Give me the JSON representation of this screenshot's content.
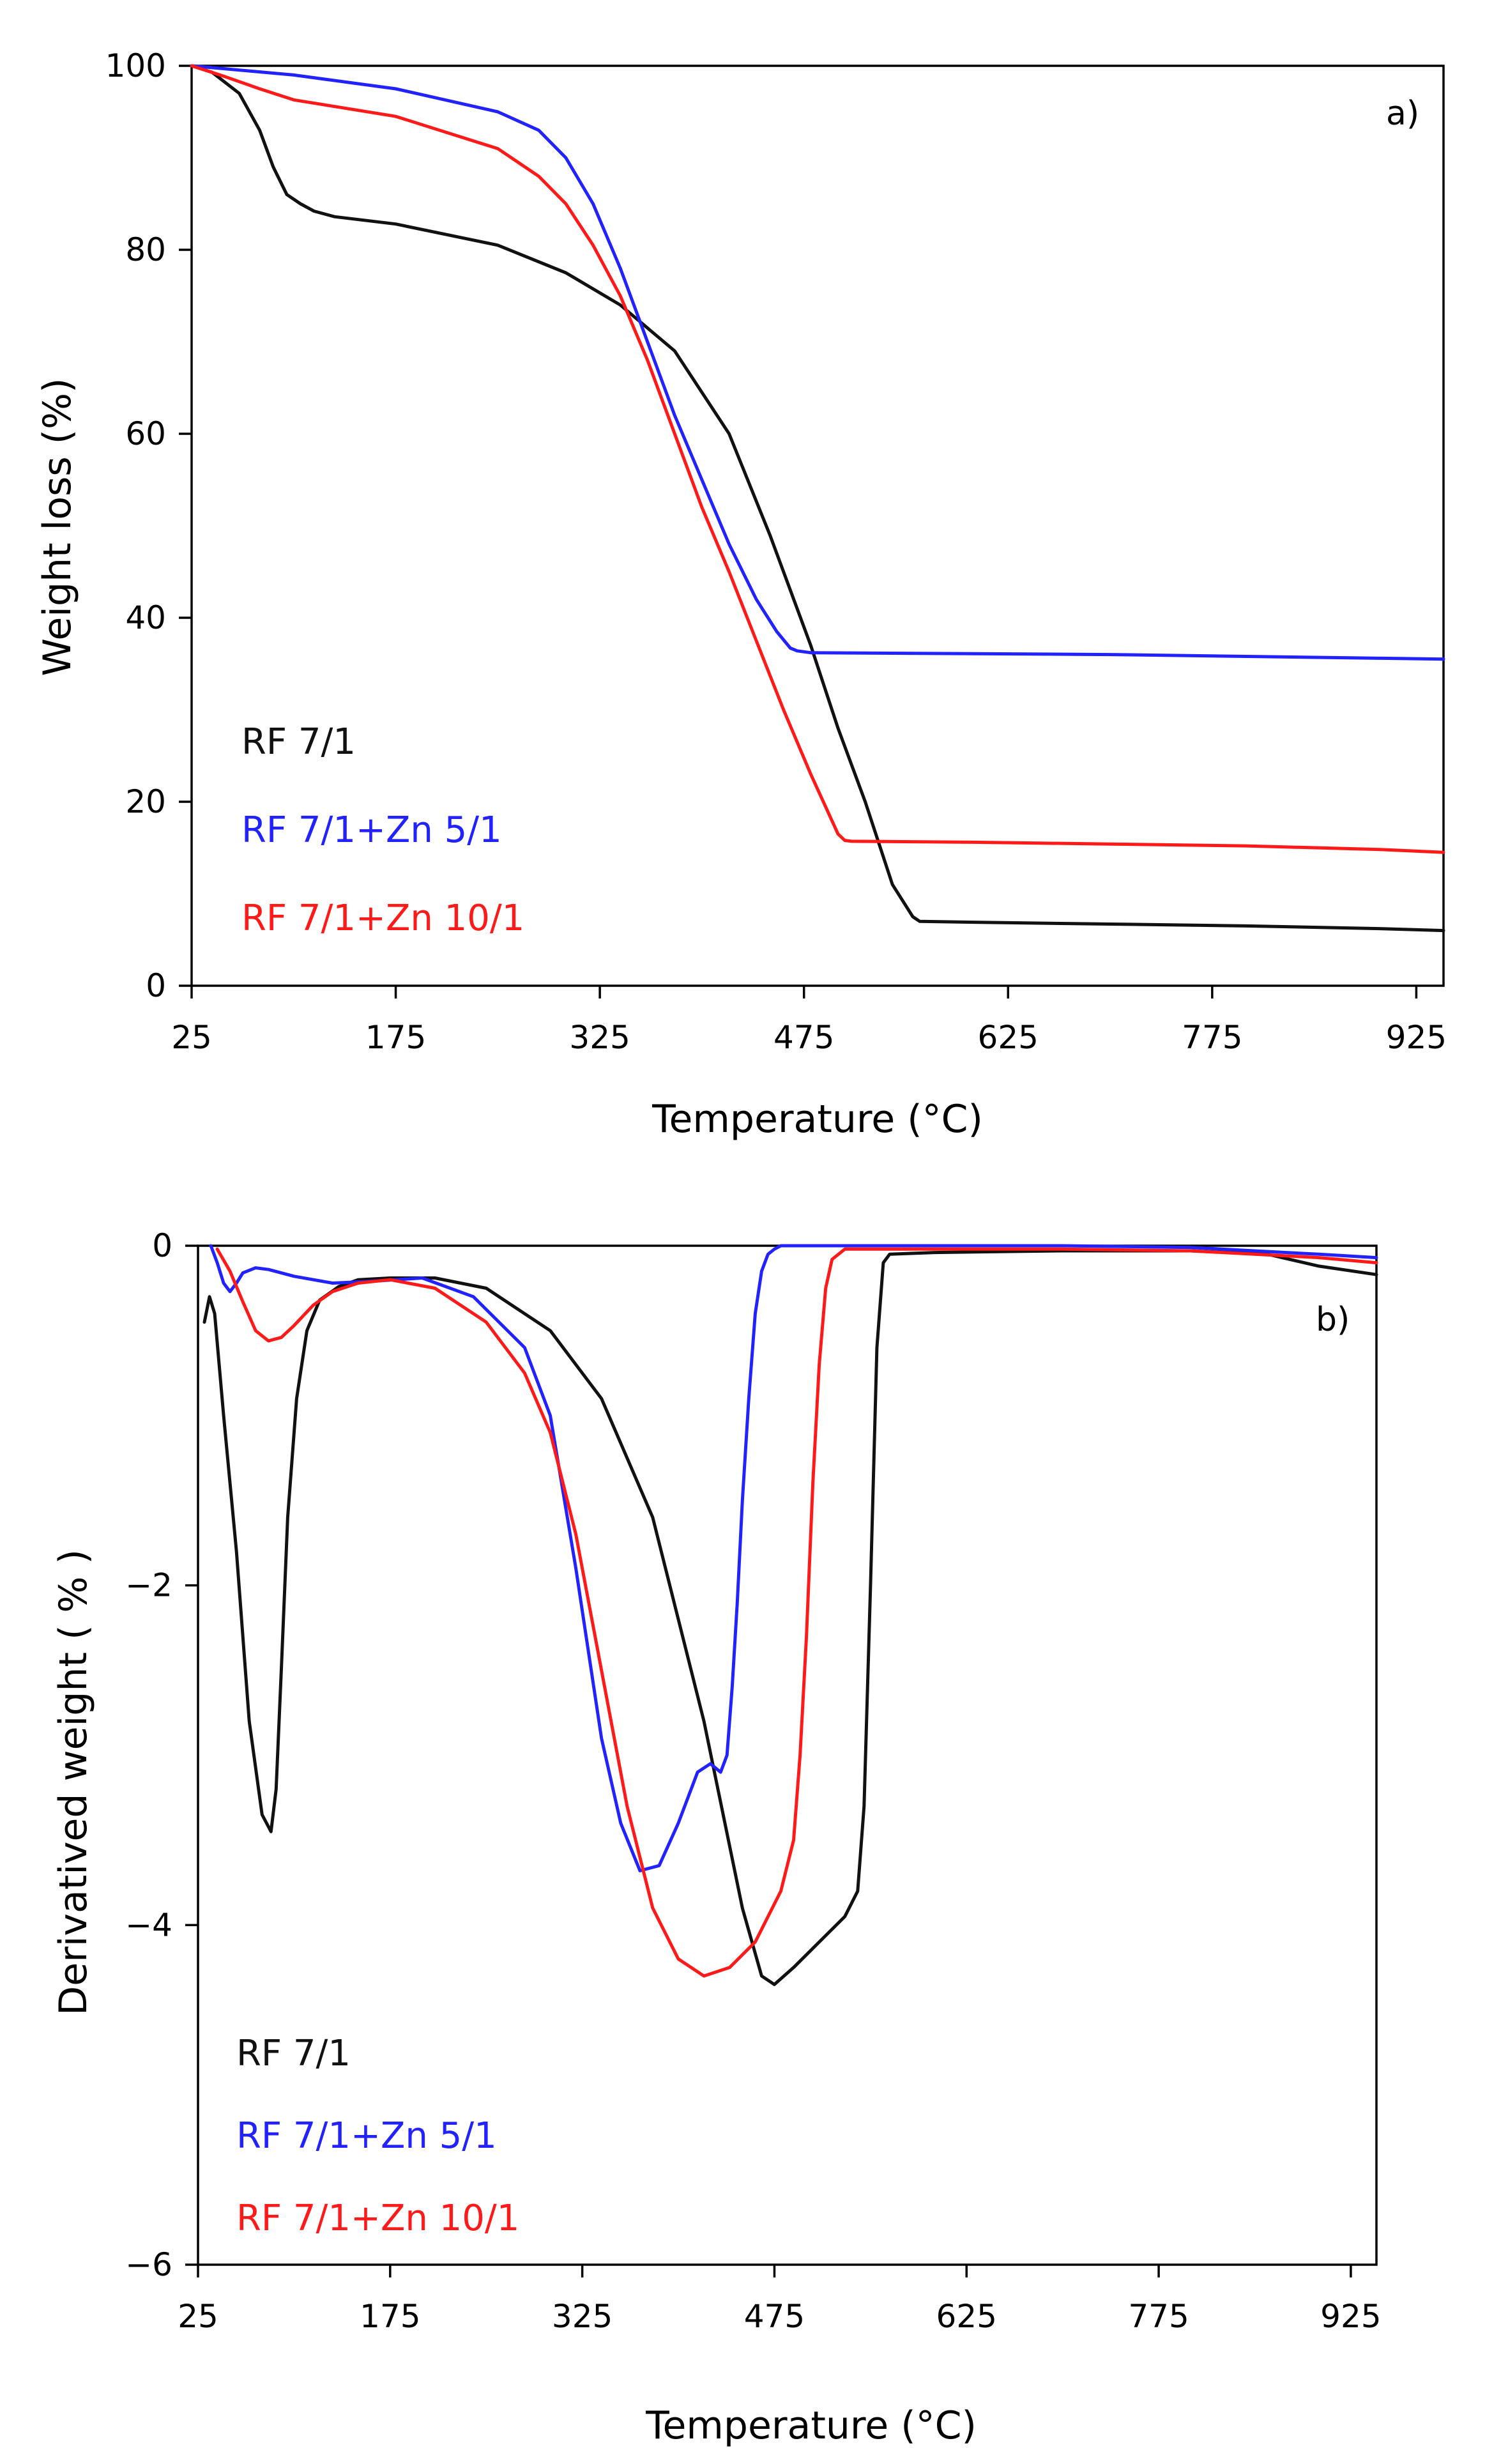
{
  "colors": {
    "black": "#111111",
    "blue": "#2222ff",
    "red": "#ff1a1a"
  },
  "chart_data": [
    {
      "type": "line",
      "panel_label": "a)",
      "xlabel": "Temperature (°C)",
      "ylabel": "Weight loss (%)",
      "xlim": [
        25,
        945
      ],
      "ylim": [
        0,
        100
      ],
      "xticks": [
        25,
        175,
        325,
        475,
        625,
        775,
        925
      ],
      "yticks": [
        0,
        20,
        40,
        60,
        80,
        100
      ],
      "xtick_labels": [
        "25",
        "175",
        "325",
        "475",
        "625",
        "775",
        "925"
      ],
      "ytick_labels": [
        "0",
        "20",
        "40",
        "60",
        "80",
        "100"
      ],
      "legend": [
        "RF 7/1",
        "RF 7/1+Zn 5/1",
        "RF 7/1+Zn 10/1"
      ],
      "series": [
        {
          "name": "RF 7/1",
          "color": "black",
          "x": [
            25,
            40,
            60,
            75,
            85,
            95,
            105,
            115,
            130,
            175,
            250,
            300,
            340,
            380,
            420,
            450,
            480,
            500,
            520,
            540,
            555,
            560,
            600,
            700,
            800,
            900,
            945
          ],
          "y": [
            100,
            99.3,
            97,
            93,
            89,
            86,
            85,
            84.2,
            83.6,
            82.8,
            80.5,
            77.5,
            74,
            69,
            60,
            49,
            37,
            28,
            20,
            11,
            7.5,
            7,
            6.9,
            6.7,
            6.5,
            6.2,
            6
          ]
        },
        {
          "name": "RF 7/1+Zn 5/1",
          "color": "blue",
          "x": [
            25,
            100,
            175,
            250,
            280,
            300,
            320,
            340,
            360,
            380,
            400,
            420,
            440,
            455,
            465,
            470,
            480,
            600,
            700,
            800,
            900,
            945
          ],
          "y": [
            100,
            99,
            97.5,
            95,
            93,
            90,
            85,
            78,
            70,
            62,
            55,
            48,
            42,
            38.5,
            36.7,
            36.4,
            36.2,
            36.1,
            36,
            35.8,
            35.6,
            35.5
          ]
        },
        {
          "name": "RF 7/1+Zn 10/1",
          "color": "red",
          "x": [
            25,
            50,
            75,
            100,
            175,
            250,
            280,
            300,
            320,
            340,
            360,
            380,
            400,
            420,
            440,
            460,
            480,
            500,
            505,
            510,
            600,
            700,
            800,
            900,
            945
          ],
          "y": [
            100,
            98.8,
            97.5,
            96.3,
            94.5,
            91,
            88,
            85,
            80.5,
            75,
            68,
            60,
            52,
            45,
            37.5,
            30,
            23,
            16.5,
            15.8,
            15.7,
            15.6,
            15.4,
            15.2,
            14.8,
            14.5
          ]
        }
      ]
    },
    {
      "type": "line",
      "panel_label": "b)",
      "xlabel": "Temperature (°C)",
      "ylabel": "Derivatived weight ( % )",
      "xlim": [
        25,
        945
      ],
      "ylim": [
        -6,
        0
      ],
      "xticks": [
        25,
        175,
        325,
        475,
        625,
        775,
        925
      ],
      "yticks": [
        -6,
        -4,
        -2,
        0
      ],
      "xtick_labels": [
        "25",
        "175",
        "325",
        "475",
        "625",
        "775",
        "925"
      ],
      "ytick_labels": [
        "−6",
        "−4",
        "−2",
        "0"
      ],
      "legend": [
        "RF 7/1",
        "RF 7/1+Zn 5/1",
        "RF 7/1+Zn 10/1"
      ],
      "series": [
        {
          "name": "RF 7/1",
          "color": "black",
          "x": [
            30,
            34,
            38,
            45,
            55,
            65,
            75,
            82,
            86,
            90,
            95,
            102,
            110,
            120,
            135,
            150,
            175,
            210,
            250,
            300,
            340,
            380,
            420,
            450,
            465,
            475,
            490,
            510,
            530,
            540,
            545,
            550,
            555,
            560,
            565,
            600,
            700,
            800,
            860,
            900,
            945
          ],
          "y": [
            -0.45,
            -0.3,
            -0.4,
            -1.0,
            -1.8,
            -2.8,
            -3.35,
            -3.45,
            -3.2,
            -2.5,
            -1.6,
            -0.9,
            -0.5,
            -0.32,
            -0.24,
            -0.2,
            -0.19,
            -0.19,
            -0.25,
            -0.5,
            -0.9,
            -1.6,
            -2.8,
            -3.9,
            -4.3,
            -4.35,
            -4.25,
            -4.1,
            -3.95,
            -3.8,
            -3.3,
            -2.0,
            -0.6,
            -0.1,
            -0.05,
            -0.04,
            -0.03,
            -0.03,
            -0.05,
            -0.12,
            -0.17
          ]
        },
        {
          "name": "RF 7/1+Zn 5/1",
          "color": "blue",
          "x": [
            35,
            40,
            45,
            50,
            55,
            60,
            70,
            80,
            100,
            130,
            160,
            200,
            240,
            280,
            300,
            320,
            340,
            355,
            370,
            385,
            400,
            415,
            425,
            433,
            438,
            442,
            446,
            450,
            455,
            460,
            465,
            470,
            475,
            480,
            500,
            600,
            700,
            800,
            900,
            945
          ],
          "y": [
            0,
            -0.1,
            -0.22,
            -0.27,
            -0.22,
            -0.16,
            -0.13,
            -0.14,
            -0.18,
            -0.22,
            -0.21,
            -0.19,
            -0.3,
            -0.6,
            -1.0,
            -1.9,
            -2.9,
            -3.4,
            -3.68,
            -3.65,
            -3.4,
            -3.1,
            -3.05,
            -3.1,
            -3.0,
            -2.6,
            -2.1,
            -1.5,
            -0.9,
            -0.4,
            -0.15,
            -0.05,
            -0.02,
            0,
            0,
            0,
            0,
            -0.01,
            -0.05,
            -0.07
          ]
        },
        {
          "name": "RF 7/1+Zn 10/1",
          "color": "red",
          "x": [
            40,
            50,
            60,
            70,
            80,
            90,
            100,
            115,
            130,
            150,
            175,
            210,
            250,
            280,
            300,
            320,
            340,
            360,
            380,
            400,
            420,
            440,
            460,
            480,
            490,
            495,
            500,
            505,
            510,
            515,
            520,
            530,
            600,
            700,
            800,
            900,
            945
          ],
          "y": [
            -0.02,
            -0.15,
            -0.33,
            -0.5,
            -0.56,
            -0.54,
            -0.47,
            -0.35,
            -0.27,
            -0.22,
            -0.2,
            -0.25,
            -0.45,
            -0.75,
            -1.1,
            -1.7,
            -2.5,
            -3.3,
            -3.9,
            -4.2,
            -4.3,
            -4.25,
            -4.1,
            -3.8,
            -3.5,
            -3.0,
            -2.3,
            -1.4,
            -0.7,
            -0.25,
            -0.08,
            -0.02,
            -0.02,
            -0.02,
            -0.03,
            -0.07,
            -0.1
          ]
        }
      ]
    }
  ]
}
